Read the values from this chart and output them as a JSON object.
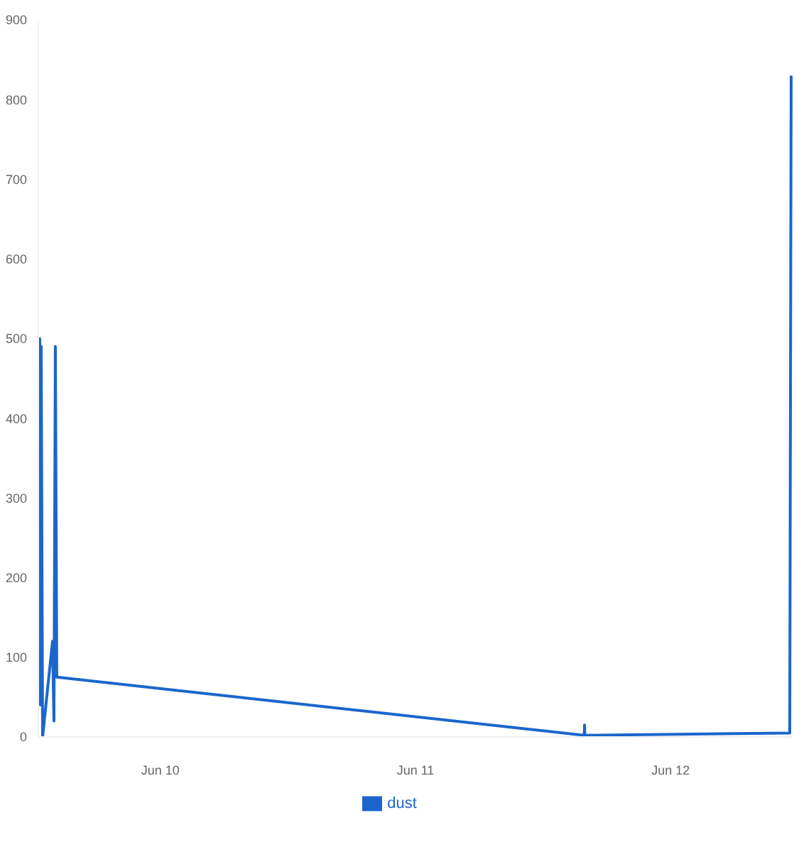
{
  "chart_data": {
    "type": "line",
    "x": [
      "--06-09T12:32",
      "--06-09T12:40",
      "--06-09T12:44",
      "--06-09T12:48",
      "--06-09T12:56",
      "--06-09T13:52",
      "--06-09T14:00",
      "--06-09T14:08",
      "--06-09T14:16",
      "--06-11T15:52",
      "--06-11T15:54",
      "--06-11T15:56",
      "--06-12T11:12",
      "--06-12T11:20"
    ],
    "series": [
      {
        "name": "dust",
        "color": "#1a66cc",
        "values": [
          60,
          500,
          40,
          490,
          0,
          120,
          20,
          490,
          75,
          2,
          15,
          2,
          5,
          830
        ]
      }
    ],
    "xlim": [
      "--06-09T12:32",
      "--06-12T11:28"
    ],
    "xticks": [
      {
        "value": "--06-10",
        "label": "Jun 10"
      },
      {
        "value": "--06-11",
        "label": "Jun 11"
      },
      {
        "value": "--06-12",
        "label": "Jun 12"
      }
    ],
    "ylim": [
      0,
      900
    ],
    "yticks": [
      0,
      100,
      200,
      300,
      400,
      500,
      600,
      700,
      800,
      900
    ],
    "grid": false,
    "legend": "bottom",
    "marker": "none",
    "line_style": "solid"
  }
}
